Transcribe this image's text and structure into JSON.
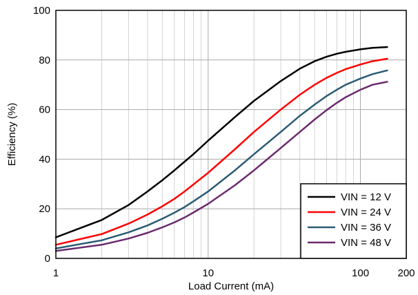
{
  "chart_data": {
    "type": "line",
    "xlabel": "Load Current (mA)",
    "ylabel": "Efficiency (%)",
    "x_scale": "log",
    "xlim": [
      1,
      200
    ],
    "ylim": [
      0,
      100
    ],
    "x_ticks": [
      1,
      10,
      100,
      200
    ],
    "x_tick_labels": [
      "1",
      "10",
      "100",
      "200"
    ],
    "y_ticks": [
      0,
      20,
      40,
      60,
      80,
      100
    ],
    "y_tick_labels": [
      "0",
      "20",
      "40",
      "60",
      "80",
      "100"
    ],
    "grid": true,
    "legend_position": "bottom-right",
    "x": [
      1,
      2,
      3,
      4,
      5,
      6,
      7,
      8,
      10,
      15,
      20,
      30,
      40,
      50,
      60,
      70,
      80,
      100,
      120,
      150
    ],
    "series": [
      {
        "name": "VIN = 12 V",
        "color": "#000000",
        "values": [
          8.5,
          15.5,
          21.5,
          27,
          31.5,
          35.5,
          39,
          42,
          47.5,
          57,
          63.5,
          71.5,
          76.5,
          79.5,
          81.3,
          82.5,
          83.3,
          84.3,
          84.9,
          85.2
        ]
      },
      {
        "name": "VIN = 24 V",
        "color": "#ff0000",
        "values": [
          5.5,
          9.8,
          14,
          17.7,
          21,
          24,
          27,
          29.8,
          34.5,
          44,
          51,
          60,
          66,
          70,
          72.8,
          74.8,
          76.3,
          78.2,
          79.5,
          80.5
        ]
      },
      {
        "name": "VIN = 36 V",
        "color": "#2a5b73",
        "values": [
          4,
          7.3,
          10.5,
          13.3,
          16,
          18.4,
          20.7,
          23,
          27,
          35.5,
          42,
          51,
          57.5,
          62,
          65.5,
          68,
          70,
          72.5,
          74.3,
          75.8
        ]
      },
      {
        "name": "VIN = 48 V",
        "color": "#6a2a6e",
        "values": [
          3,
          5.5,
          8,
          10.3,
          12.5,
          14.5,
          16.5,
          18.5,
          22,
          29.5,
          35.5,
          44.5,
          51,
          56,
          59.8,
          62.7,
          65,
          68,
          70,
          71.2
        ]
      }
    ]
  }
}
